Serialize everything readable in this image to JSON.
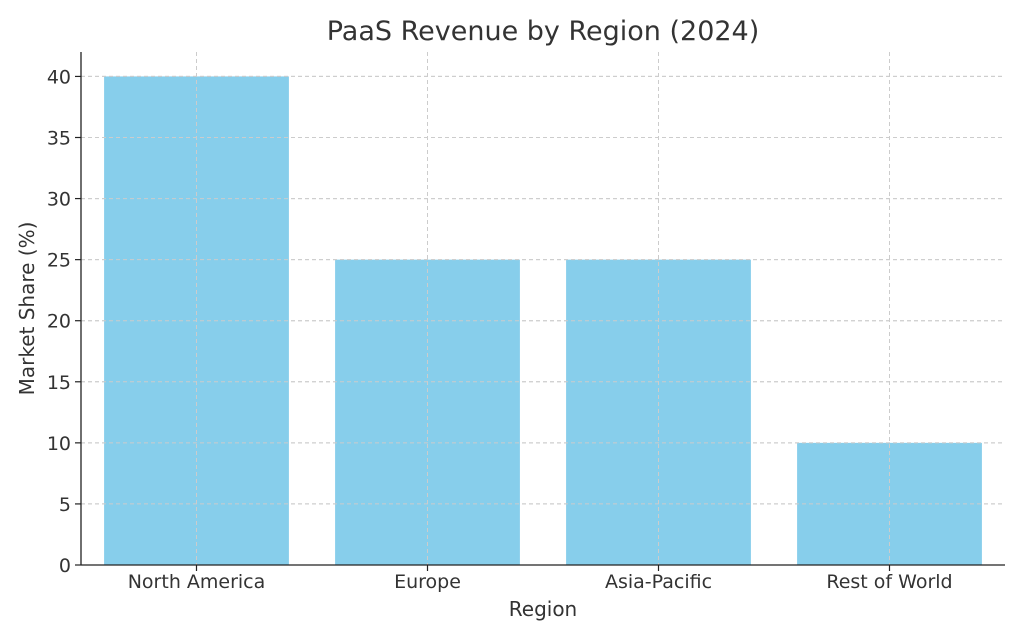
{
  "chart_data": {
    "type": "bar",
    "title": "PaaS Revenue by Region (2024)",
    "xlabel": "Region",
    "ylabel": "Market Share (%)",
    "categories": [
      "North America",
      "Europe",
      "Asia-Pacific",
      "Rest of World"
    ],
    "values": [
      40,
      25,
      25,
      10
    ],
    "ylim": [
      0,
      42
    ],
    "yticks": [
      0,
      5,
      10,
      15,
      20,
      25,
      30,
      35,
      40
    ],
    "grid": true,
    "bar_color": "#87CEEB"
  }
}
